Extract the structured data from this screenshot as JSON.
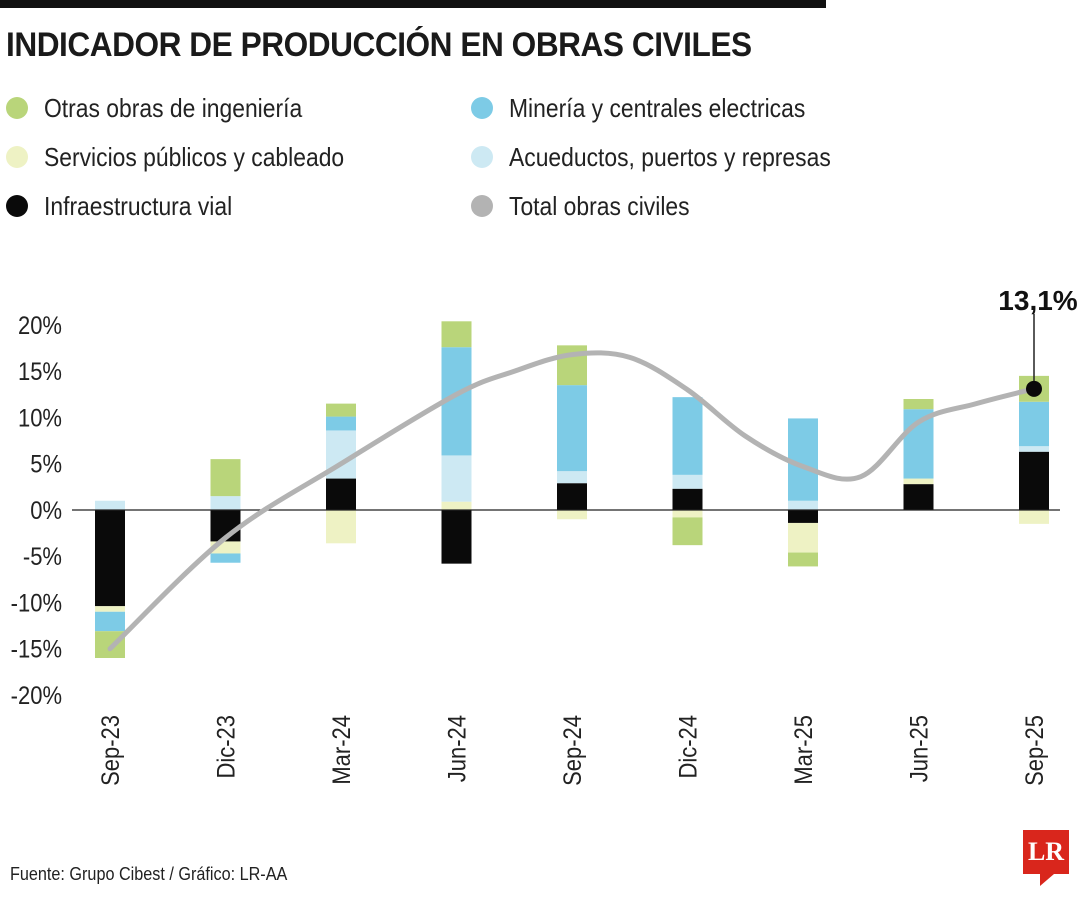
{
  "title": "INDICADOR DE PRODUCCIÓN EN OBRAS CIVILES",
  "footer": "Fuente: Grupo Cibest / Gráfico: LR-AA",
  "logo": {
    "text": "LR",
    "color": "#d9261c"
  },
  "legend": [
    {
      "label": "Otras obras de ingeniería",
      "color": "#b9d57a"
    },
    {
      "label": "Minería y centrales electricas",
      "color": "#7dcbe6"
    },
    {
      "label": "Servicios públicos y cableado",
      "color": "#eef2c4"
    },
    {
      "label": "Acueductos, puertos y represas",
      "color": "#cde9f3"
    },
    {
      "label": "Infraestructura vial",
      "color": "#0a0a0a"
    },
    {
      "label": "Total obras civiles",
      "color": "#b3b3b3"
    }
  ],
  "chart_data": {
    "type": "bar",
    "stacked": true,
    "title": "INDICADOR DE PRODUCCIÓN EN OBRAS CIVILES",
    "categories": [
      "Sep-23",
      "Dic-23",
      "Mar-24",
      "Jun-24",
      "Sep-24",
      "Dic-24",
      "Mar-25",
      "Jun-25",
      "Sep-25"
    ],
    "y_ticks": [
      "20%",
      "15%",
      "10%",
      "5%",
      "0%",
      "-5%",
      "-10%",
      "-15%",
      "-20%"
    ],
    "y_tick_values": [
      20,
      15,
      10,
      5,
      0,
      -5,
      -10,
      -15,
      -20
    ],
    "ylim": [
      -20,
      20
    ],
    "series": [
      {
        "name": "Infraestructura vial",
        "color": "#0a0a0a",
        "values": [
          -10.4,
          -3.4,
          3.4,
          -5.8,
          2.9,
          2.3,
          -1.4,
          2.8,
          6.3
        ]
      },
      {
        "name": "Servicios públicos y cableado",
        "color": "#eef2c4",
        "values": [
          -0.6,
          -1.3,
          -3.6,
          0.9,
          -1.0,
          -0.8,
          -3.2,
          0.6,
          -1.5
        ]
      },
      {
        "name": "Acueductos, puertos y represas",
        "color": "#cde9f3",
        "values": [
          1.0,
          1.5,
          5.2,
          5.0,
          1.3,
          1.5,
          1.0,
          0.0,
          0.6
        ]
      },
      {
        "name": "Minería y centrales electricas",
        "color": "#7dcbe6",
        "values": [
          -2.1,
          -1.0,
          1.5,
          11.7,
          9.3,
          8.4,
          8.9,
          7.5,
          4.8
        ]
      },
      {
        "name": "Otras obras de ingeniería",
        "color": "#b9d57a",
        "values": [
          -2.9,
          4.0,
          1.4,
          2.8,
          4.3,
          -3.0,
          -1.5,
          1.1,
          2.8
        ]
      }
    ],
    "line": {
      "name": "Total obras civiles",
      "color": "#b3b3b3",
      "x": [
        0,
        1,
        2,
        3,
        3.5,
        4,
        4.5,
        5,
        5.5,
        6,
        6.5,
        7,
        7.5,
        8
      ],
      "values": [
        -15.0,
        -3.0,
        5.0,
        12.5,
        15.0,
        16.8,
        16.5,
        13.0,
        8.0,
        4.7,
        3.6,
        9.5,
        11.5,
        13.1
      ]
    },
    "annotation": {
      "label": "13,1%",
      "category": "Sep-25",
      "value": 13.1
    }
  }
}
